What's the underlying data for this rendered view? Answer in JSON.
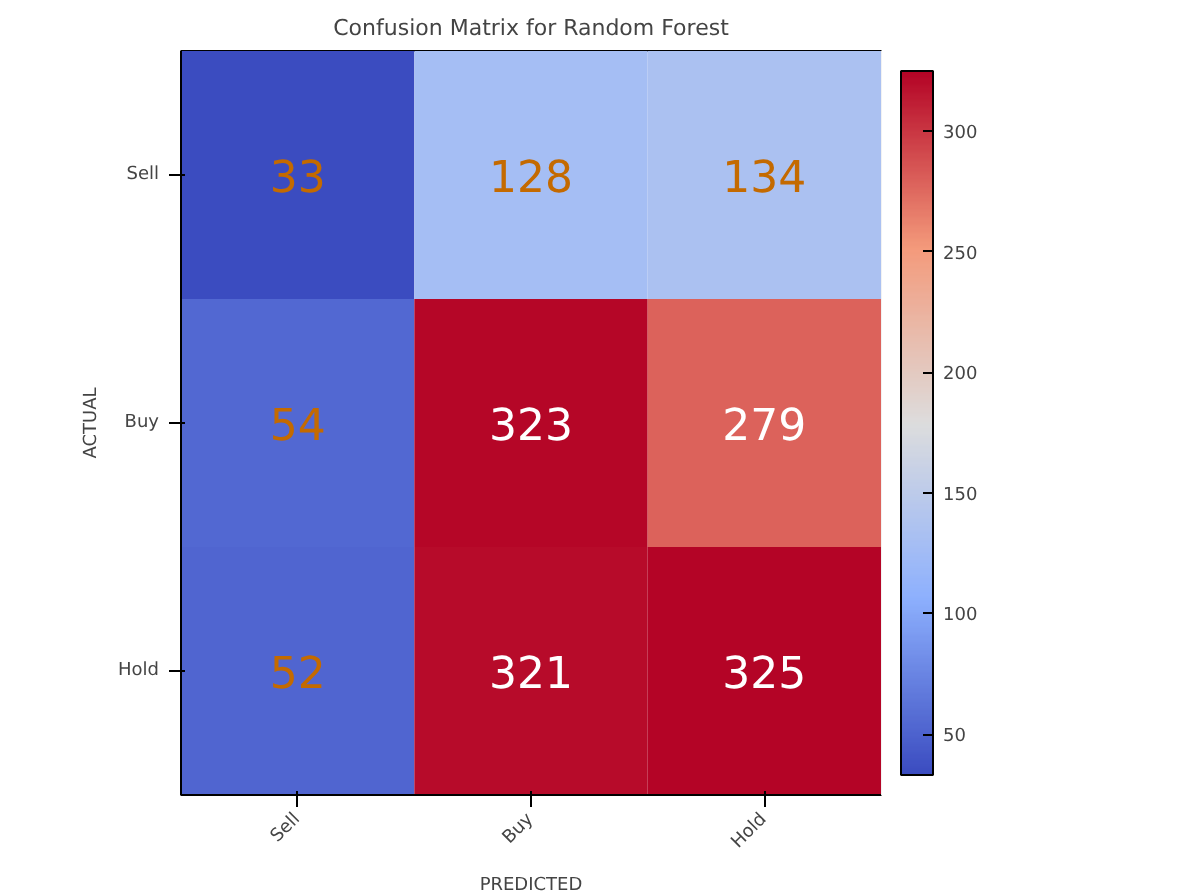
{
  "chart_data": {
    "type": "heatmap",
    "title": "Confusion Matrix for Random Forest",
    "xlabel": "PREDICTED",
    "ylabel": "ACTUAL",
    "categories": [
      "Sell",
      "Buy",
      "Hold"
    ],
    "y_categories": [
      "Sell",
      "Buy",
      "Hold"
    ],
    "cells": [
      [
        33,
        128,
        134
      ],
      [
        54,
        323,
        279
      ],
      [
        52,
        321,
        325
      ]
    ],
    "data_labels": true,
    "clim": [
      33,
      325
    ],
    "cticks": [
      50,
      100,
      150,
      200,
      250,
      300
    ]
  }
}
